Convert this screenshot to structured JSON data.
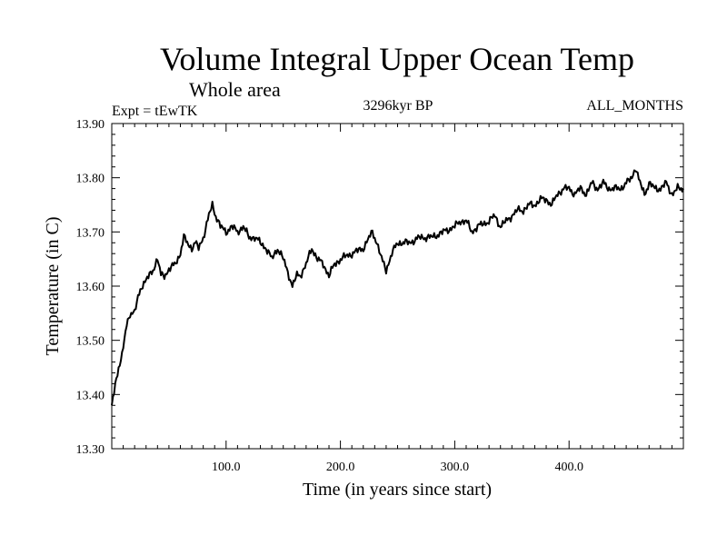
{
  "chart_data": {
    "type": "line",
    "title": "Volume Integral Upper Ocean Temp",
    "subtitle": "Whole area",
    "left_label": "Expt = tEwTK",
    "center_label": "3296kyr BP",
    "right_label": "ALL_MONTHS",
    "xlabel": "Time (in years since start)",
    "ylabel": "Temperature (in C)",
    "xlim": [
      0,
      500
    ],
    "ylim": [
      13.3,
      13.9
    ],
    "x_ticks": [
      100,
      200,
      300,
      400
    ],
    "x_tick_labels": [
      "100.0",
      "200.0",
      "300.0",
      "400.0"
    ],
    "y_ticks": [
      13.3,
      13.4,
      13.5,
      13.6,
      13.7,
      13.8,
      13.9
    ],
    "y_tick_labels": [
      "13.30",
      "13.40",
      "13.50",
      "13.60",
      "13.70",
      "13.80",
      "13.90"
    ],
    "grid": false,
    "series": [
      {
        "name": "Volume Integral Upper Ocean Temp",
        "color": "#000000",
        "anchors": [
          [
            0,
            13.38
          ],
          [
            3,
            13.42
          ],
          [
            6,
            13.45
          ],
          [
            9,
            13.47
          ],
          [
            11,
            13.5
          ],
          [
            13,
            13.53
          ],
          [
            16,
            13.55
          ],
          [
            20,
            13.55
          ],
          [
            23,
            13.58
          ],
          [
            26,
            13.6
          ],
          [
            30,
            13.61
          ],
          [
            33,
            13.62
          ],
          [
            36,
            13.63
          ],
          [
            40,
            13.65
          ],
          [
            43,
            13.62
          ],
          [
            46,
            13.62
          ],
          [
            50,
            13.63
          ],
          [
            55,
            13.64
          ],
          [
            60,
            13.66
          ],
          [
            63,
            13.69
          ],
          [
            66,
            13.68
          ],
          [
            70,
            13.67
          ],
          [
            73,
            13.68
          ],
          [
            76,
            13.67
          ],
          [
            80,
            13.69
          ],
          [
            85,
            13.73
          ],
          [
            88,
            13.75
          ],
          [
            91,
            13.73
          ],
          [
            95,
            13.71
          ],
          [
            100,
            13.7
          ],
          [
            105,
            13.71
          ],
          [
            110,
            13.7
          ],
          [
            115,
            13.71
          ],
          [
            120,
            13.69
          ],
          [
            125,
            13.69
          ],
          [
            130,
            13.68
          ],
          [
            135,
            13.67
          ],
          [
            140,
            13.65
          ],
          [
            145,
            13.67
          ],
          [
            150,
            13.65
          ],
          [
            155,
            13.62
          ],
          [
            158,
            13.6
          ],
          [
            162,
            13.62
          ],
          [
            165,
            13.62
          ],
          [
            170,
            13.64
          ],
          [
            175,
            13.67
          ],
          [
            180,
            13.65
          ],
          [
            185,
            13.64
          ],
          [
            190,
            13.62
          ],
          [
            195,
            13.64
          ],
          [
            200,
            13.65
          ],
          [
            210,
            13.66
          ],
          [
            220,
            13.67
          ],
          [
            228,
            13.7
          ],
          [
            232,
            13.68
          ],
          [
            236,
            13.65
          ],
          [
            240,
            13.63
          ],
          [
            245,
            13.66
          ],
          [
            250,
            13.68
          ],
          [
            260,
            13.68
          ],
          [
            270,
            13.69
          ],
          [
            280,
            13.69
          ],
          [
            290,
            13.7
          ],
          [
            300,
            13.71
          ],
          [
            305,
            13.72
          ],
          [
            310,
            13.72
          ],
          [
            315,
            13.7
          ],
          [
            320,
            13.71
          ],
          [
            330,
            13.72
          ],
          [
            335,
            13.73
          ],
          [
            340,
            13.71
          ],
          [
            345,
            13.72
          ],
          [
            350,
            13.73
          ],
          [
            355,
            13.74
          ],
          [
            360,
            13.74
          ],
          [
            365,
            13.75
          ],
          [
            370,
            13.75
          ],
          [
            375,
            13.76
          ],
          [
            380,
            13.76
          ],
          [
            385,
            13.75
          ],
          [
            390,
            13.77
          ],
          [
            395,
            13.78
          ],
          [
            400,
            13.78
          ],
          [
            405,
            13.77
          ],
          [
            410,
            13.78
          ],
          [
            415,
            13.77
          ],
          [
            420,
            13.79
          ],
          [
            425,
            13.78
          ],
          [
            430,
            13.79
          ],
          [
            435,
            13.78
          ],
          [
            440,
            13.78
          ],
          [
            445,
            13.78
          ],
          [
            450,
            13.79
          ],
          [
            455,
            13.8
          ],
          [
            458,
            13.82
          ],
          [
            462,
            13.79
          ],
          [
            466,
            13.77
          ],
          [
            470,
            13.79
          ],
          [
            475,
            13.78
          ],
          [
            480,
            13.78
          ],
          [
            485,
            13.79
          ],
          [
            490,
            13.77
          ],
          [
            495,
            13.78
          ],
          [
            500,
            13.78
          ]
        ]
      }
    ]
  }
}
